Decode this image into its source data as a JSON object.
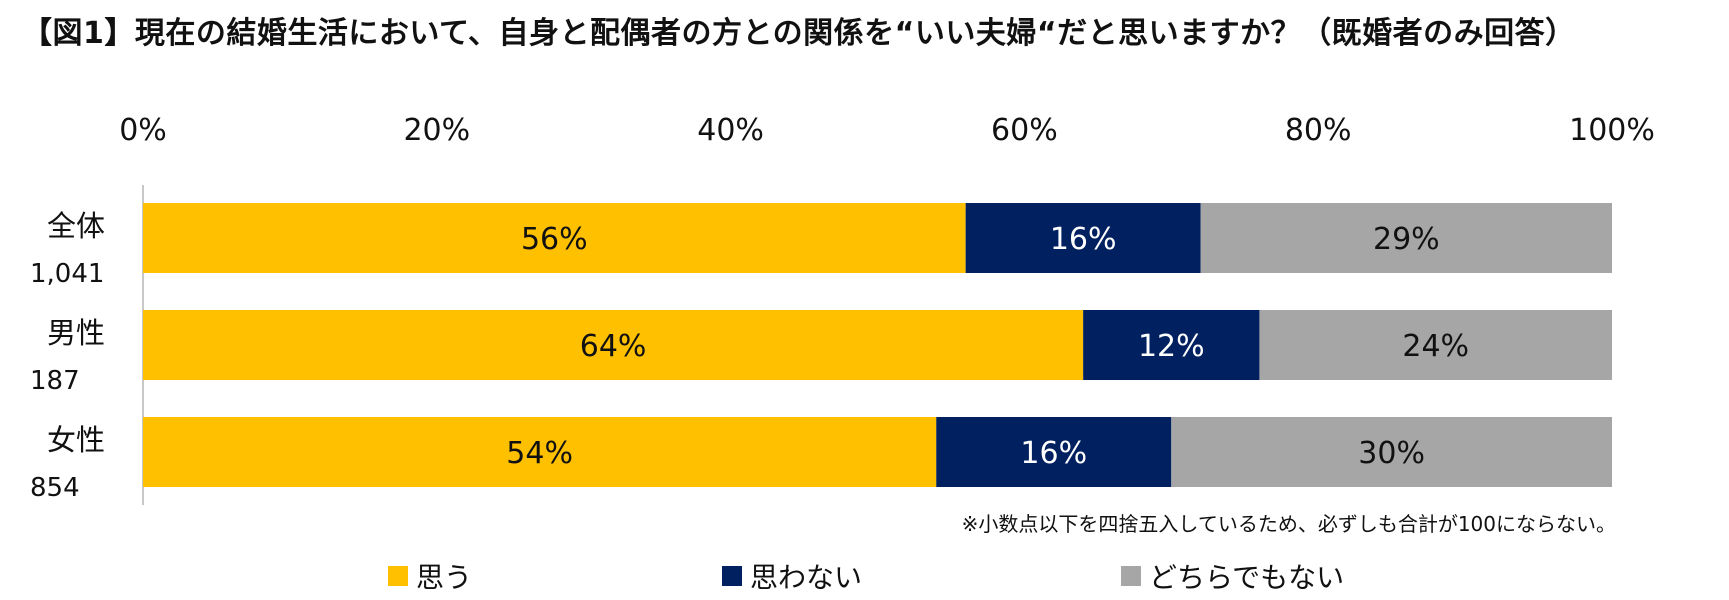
{
  "title": "【図1】現在の結婚生活において、自身と配偶者の方との関係を“いい夫婦“だと思いますか？（既婚者のみ回答）",
  "note": "※小数点以下を四捨五入しているため、必ずしも合計が100にならない。",
  "chart_data": {
    "type": "bar",
    "orientation": "horizontal",
    "stacked": true,
    "x_ticks": [
      "0%",
      "20%",
      "40%",
      "60%",
      "80%",
      "100%"
    ],
    "xlim": [
      0,
      100
    ],
    "categories": [
      {
        "label": "全体",
        "n": "1,041"
      },
      {
        "label": "男性",
        "n": "187"
      },
      {
        "label": "女性",
        "n": "854"
      }
    ],
    "series": [
      {
        "name": "思う",
        "color": "#FFC000",
        "label_color": "#111111",
        "values": [
          56,
          64,
          54
        ],
        "labels": [
          "56%",
          "64%",
          "54%"
        ]
      },
      {
        "name": "思わない",
        "color": "#002060",
        "label_color": "#ffffff",
        "values": [
          16,
          12,
          16
        ],
        "labels": [
          "16%",
          "12%",
          "16%"
        ]
      },
      {
        "name": "どちらでもない",
        "color": "#A6A6A6",
        "label_color": "#111111",
        "values": [
          29,
          24,
          30
        ],
        "labels": [
          "29%",
          "24%",
          "30%"
        ]
      }
    ],
    "legend_position": "bottom",
    "grid": false
  }
}
